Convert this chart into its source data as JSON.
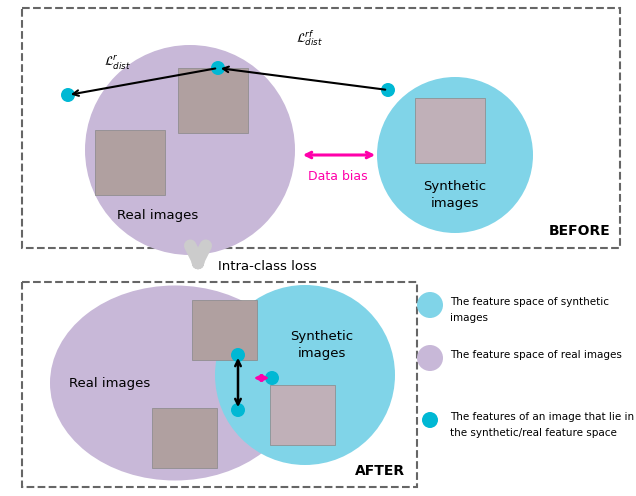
{
  "fig_width": 6.36,
  "fig_height": 4.96,
  "bg_color": "#ffffff",
  "dashed_box_color": "#666666",
  "purple_color": "#c8b8d8",
  "cyan_color": "#80d4e8",
  "cyan_dot_color": "#00b8d4",
  "magenta_color": "#ff00aa",
  "before_label": "BEFORE",
  "after_label": "AFTER",
  "arrow_label": "Intra-class loss",
  "real_images_label": "Real images",
  "synthetic_label_before": "Synthetic\nimages",
  "synthetic_label_after": "Synthetic\nimages",
  "data_bias_label": "Data bias",
  "legend1_line1": "The feature space of synthetic",
  "legend1_line2": "images",
  "legend2": "The feature space of real images",
  "legend3_line1": "The features of an image that lie in",
  "legend3_line2": "the synthetic/real feature space"
}
